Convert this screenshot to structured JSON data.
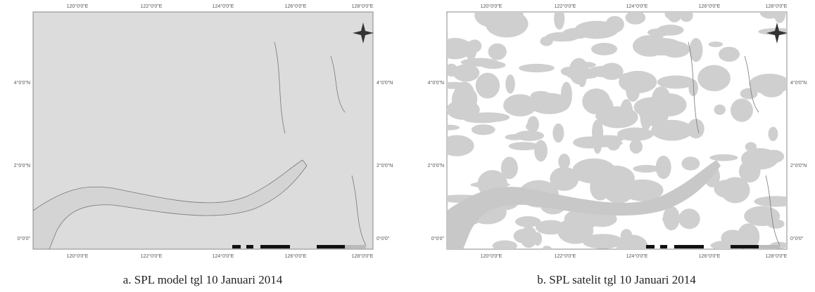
{
  "panels": [
    {
      "caption": "a. SPL model tgl 10 Januari 2014",
      "lon_labels": [
        "120°0'0\"E",
        "122°0'0\"E",
        "124°0'0\"E",
        "126°0'0\"E",
        "128°0'0\"E"
      ],
      "lat_labels": [
        "4°0'0\"N",
        "2°0'0\"N",
        "0°0'0\""
      ]
    },
    {
      "caption": "b. SPL satelit tgl 10 Januari 2014",
      "lon_labels": [
        "120°0'0\"E",
        "122°0'0\"E",
        "124°0'0\"E",
        "126°0'0\"E",
        "128°0'0\"E"
      ],
      "lat_labels": [
        "4°0'0\"N",
        "2°0'0\"N",
        "0°0'0\""
      ]
    }
  ]
}
